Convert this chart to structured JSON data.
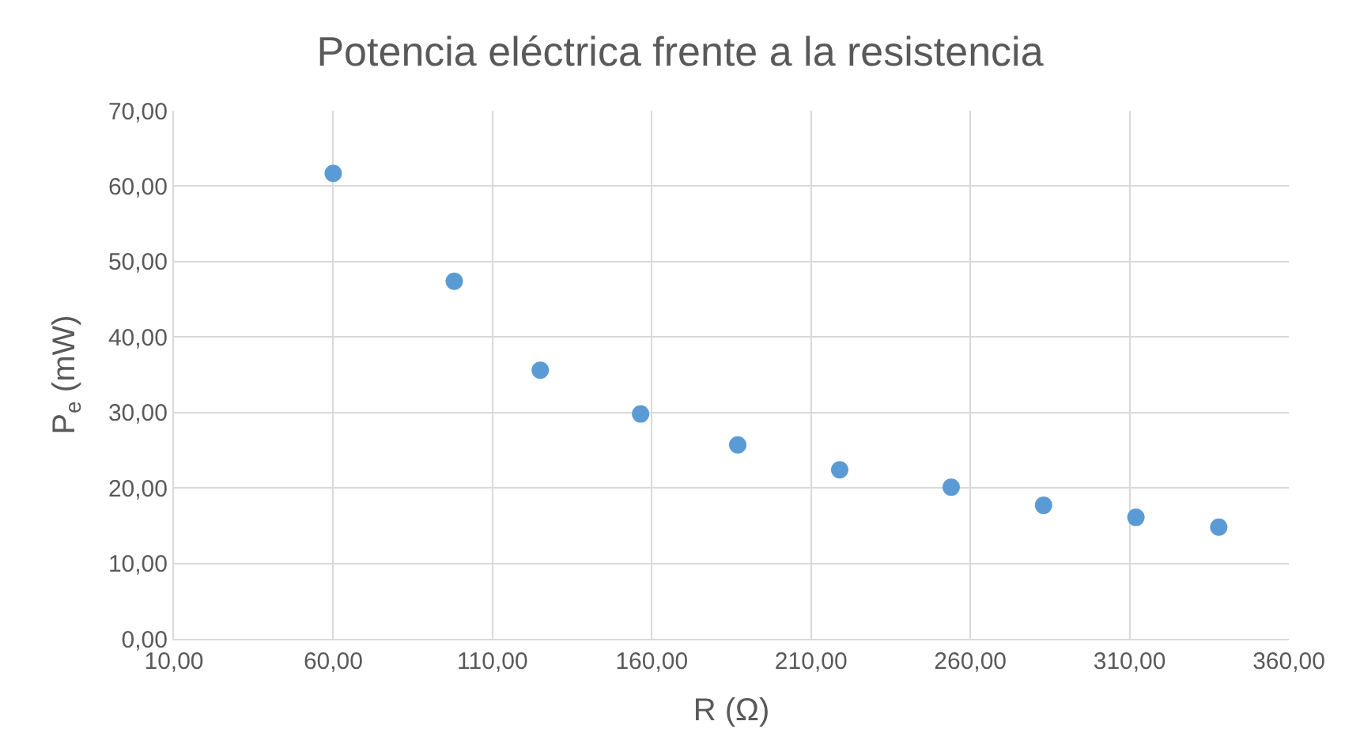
{
  "chart_data": {
    "type": "scatter",
    "title": "Potencia eléctrica frente a la resistencia",
    "xlabel": "R (Ω)",
    "ylabel": "P$_{e}$ (mW)",
    "x": [
      60,
      98,
      125,
      156.5,
      187,
      219,
      254,
      283,
      312,
      338
    ],
    "series": [
      {
        "color": "#5b9bd5",
        "values": [
          61.7,
          47.4,
          35.6,
          29.8,
          25.7,
          22.4,
          20.1,
          17.7,
          16.1,
          14.8
        ]
      }
    ],
    "xlim": [
      10,
      360
    ],
    "xticks": [
      {
        "value": 10,
        "label": "10,00"
      },
      {
        "value": 60,
        "label": "60,00"
      },
      {
        "value": 110,
        "label": "110,00"
      },
      {
        "value": 160,
        "label": "160,00"
      },
      {
        "value": 210,
        "label": "210,00"
      },
      {
        "value": 260,
        "label": "260,00"
      },
      {
        "value": 310,
        "label": "310,00"
      },
      {
        "value": 360,
        "label": "360,00"
      }
    ],
    "ylim": [
      0,
      70
    ],
    "yticks": [
      {
        "value": 0,
        "label": "0,00"
      },
      {
        "value": 10,
        "label": "10,00"
      },
      {
        "value": 20,
        "label": "20,00"
      },
      {
        "value": 30,
        "label": "30,00"
      },
      {
        "value": 40,
        "label": "40,00"
      },
      {
        "value": 50,
        "label": "50,00"
      },
      {
        "value": 60,
        "label": "60,00"
      },
      {
        "value": 70,
        "label": "70,00"
      }
    ],
    "grid": true,
    "marker": "circle"
  }
}
